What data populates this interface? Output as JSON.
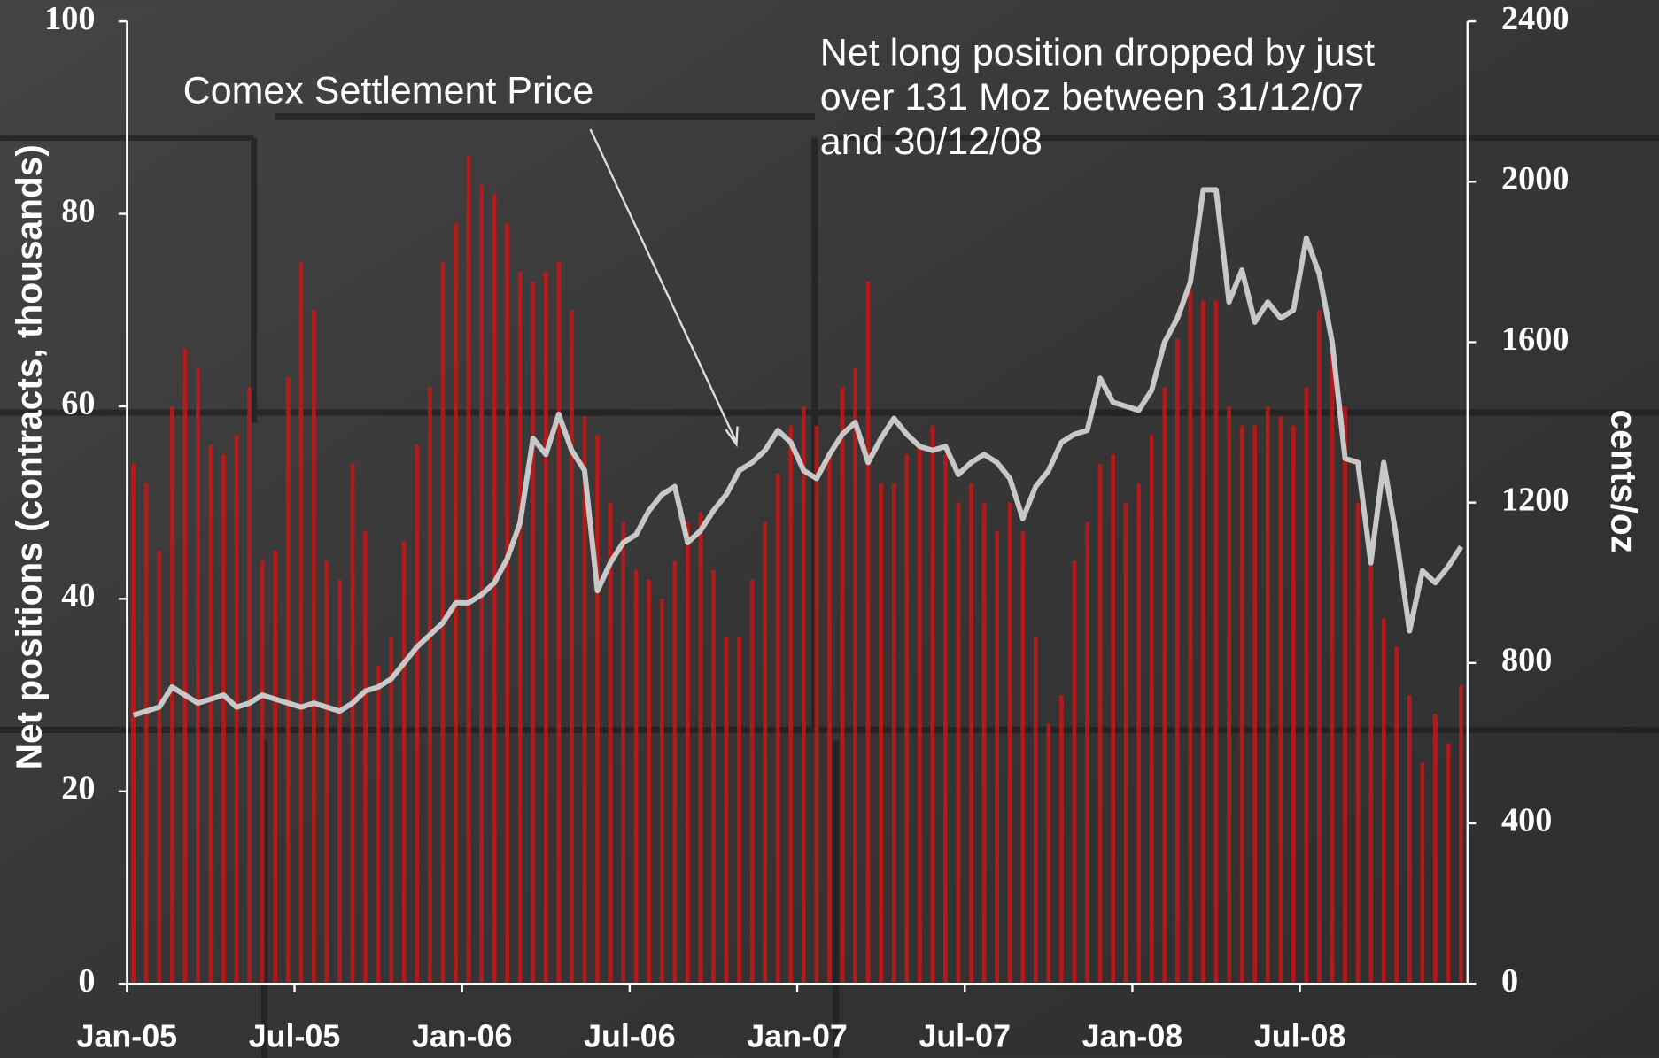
{
  "chart_data": {
    "type": "bar",
    "y_label": "Net positions (contracts, thousands)",
    "y2_label": "cents/oz",
    "annotations": [
      {
        "lines": [
          "Comex Settlement Price"
        ]
      },
      {
        "lines": [
          "Net long position dropped by just",
          "over 131 Moz between 31/12/07",
          "and 30/12/08"
        ]
      }
    ],
    "categories": [
      "Jan-05",
      null,
      null,
      null,
      null,
      null,
      null,
      null,
      null,
      null,
      null,
      null,
      null,
      "Jul-05",
      null,
      null,
      null,
      null,
      null,
      null,
      null,
      null,
      null,
      null,
      null,
      null,
      "Jan-06",
      null,
      null,
      null,
      null,
      null,
      null,
      null,
      null,
      null,
      null,
      null,
      null,
      "Jul-06",
      null,
      null,
      null,
      null,
      null,
      null,
      null,
      null,
      null,
      null,
      null,
      null,
      "Jan-07",
      null,
      null,
      null,
      null,
      null,
      null,
      null,
      null,
      null,
      null,
      null,
      null,
      "Jul-07",
      null,
      null,
      null,
      null,
      null,
      null,
      null,
      null,
      null,
      null,
      null,
      null,
      "Jan-08",
      null,
      null,
      null,
      null,
      null,
      null,
      null,
      null,
      null,
      null,
      null,
      null,
      "Jul-08",
      null,
      null,
      null,
      null,
      null,
      null,
      null,
      null,
      null,
      null,
      null,
      null
    ],
    "series": [
      {
        "type": "bar",
        "axis": "y",
        "color": "#d01414",
        "values": [
          54,
          52,
          45,
          60,
          66,
          64,
          56,
          55,
          57,
          62,
          44,
          45,
          63,
          75,
          70,
          44,
          42,
          54,
          47,
          33,
          36,
          46,
          56,
          62,
          75,
          79,
          86,
          83,
          82,
          79,
          74,
          73,
          74,
          75,
          70,
          59,
          57,
          50,
          48,
          43,
          42,
          40,
          44,
          48,
          49,
          43,
          36,
          36,
          42,
          48,
          53,
          58,
          60,
          58,
          55,
          62,
          64,
          73,
          52,
          52,
          55,
          56,
          58,
          55,
          50,
          52,
          50,
          47,
          50,
          47,
          36,
          27,
          30,
          44,
          48,
          54,
          55,
          50,
          52,
          57,
          62,
          67,
          72,
          71,
          71,
          60,
          58,
          58,
          60,
          59,
          58,
          62,
          70,
          66,
          60,
          50,
          45,
          38,
          35,
          30,
          23,
          28,
          25,
          31
        ]
      },
      {
        "type": "line",
        "axis": "y2",
        "color": "#c8c8c8",
        "values": [
          670,
          680,
          690,
          740,
          720,
          700,
          710,
          720,
          690,
          700,
          720,
          710,
          700,
          690,
          700,
          690,
          680,
          700,
          730,
          740,
          760,
          800,
          840,
          870,
          900,
          950,
          950,
          970,
          1000,
          1060,
          1150,
          1360,
          1320,
          1420,
          1330,
          1280,
          980,
          1050,
          1100,
          1120,
          1180,
          1220,
          1240,
          1100,
          1130,
          1180,
          1220,
          1280,
          1300,
          1330,
          1380,
          1350,
          1280,
          1260,
          1320,
          1370,
          1400,
          1300,
          1360,
          1410,
          1370,
          1340,
          1330,
          1340,
          1270,
          1300,
          1320,
          1300,
          1260,
          1160,
          1240,
          1280,
          1350,
          1370,
          1380,
          1510,
          1450,
          1440,
          1430,
          1480,
          1600,
          1660,
          1750,
          1980,
          1980,
          1700,
          1780,
          1650,
          1700,
          1660,
          1680,
          1860,
          1770,
          1600,
          1310,
          1300,
          1050,
          1300,
          1110,
          880,
          1030,
          1000,
          1040,
          1090
        ]
      }
    ],
    "ylim": [
      0,
      100
    ],
    "yticks": [
      0,
      20,
      40,
      60,
      80,
      100
    ],
    "y2lim": [
      0,
      2400
    ],
    "y2ticks": [
      0,
      400,
      800,
      1200,
      1600,
      2000,
      2400
    ],
    "grid": false
  }
}
